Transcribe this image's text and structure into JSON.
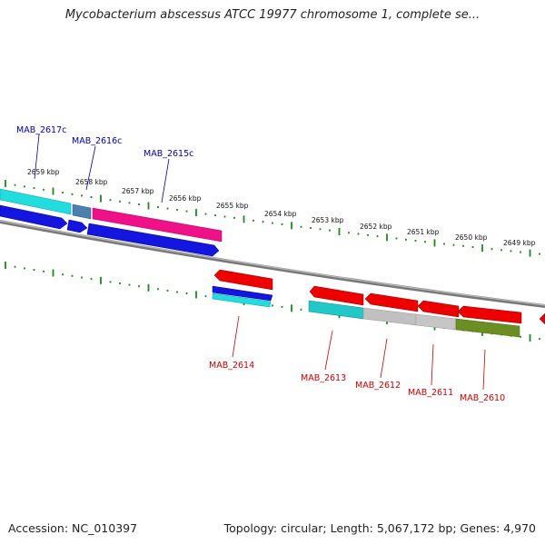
{
  "title": "Mycobacterium abscessus ATCC 19977 chromosome 1, complete se...",
  "footer": {
    "accession": "Accession: NC_010397",
    "stats": "Topology: circular; Length: 5,067,172 bp; Genes: 4,970"
  },
  "colors": {
    "backbone": "#888888",
    "tick": "#1a8a1a",
    "forward_gene": "#ee0000",
    "reverse_gene": "#0000dd",
    "forward_label": "#cc0000",
    "reverse_label": "#0000aa",
    "feature_cyan": "#22dddd",
    "feature_magenta": "#ee1188",
    "feature_steel": "#4477aa",
    "feature_gray": "#bbbbbb",
    "feature_olive": "#6b8e23"
  },
  "scale_labels": [
    "2659 kbp",
    "2658 kbp",
    "2657 kbp",
    "2656 kbp",
    "2655 kbp",
    "2654 kbp",
    "2653 kbp",
    "2652 kbp",
    "2651 kbp",
    "2650 kbp",
    "2649 kbp"
  ],
  "reverse_genes": [
    "MAB_2617c",
    "MAB_2616c",
    "MAB_2615c"
  ],
  "forward_genes": [
    "MAB_2614",
    "MAB_2613",
    "MAB_2612",
    "MAB_2611",
    "MAB_2610"
  ]
}
